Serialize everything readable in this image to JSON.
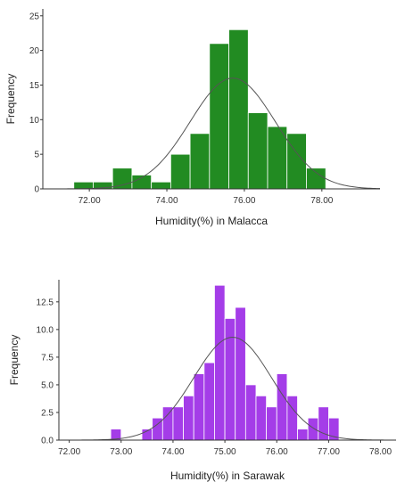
{
  "chart_data": [
    {
      "type": "bar",
      "subtype": "histogram",
      "xlabel": "Humidity(%) in Malacca",
      "ylabel": "Frequency",
      "bar_color": "#228b22",
      "bar_edge_color": "#ffffff",
      "curve_color": "#555555",
      "xlim": [
        70.8,
        79.5
      ],
      "ylim": [
        0,
        26
      ],
      "xticks": [
        72,
        74,
        76,
        78
      ],
      "xtick_labels": [
        "72.00",
        "74.00",
        "76.00",
        "78.00"
      ],
      "yticks": [
        0,
        5,
        10,
        15,
        20,
        25
      ],
      "ytick_labels": [
        "0",
        "5",
        "10",
        "15",
        "20",
        "25"
      ],
      "bins": [
        {
          "from": 71.6,
          "to": 72.1,
          "count": 1
        },
        {
          "from": 72.1,
          "to": 72.6,
          "count": 1
        },
        {
          "from": 72.6,
          "to": 73.1,
          "count": 3
        },
        {
          "from": 73.1,
          "to": 73.6,
          "count": 2
        },
        {
          "from": 73.6,
          "to": 74.1,
          "count": 1
        },
        {
          "from": 74.1,
          "to": 74.6,
          "count": 5
        },
        {
          "from": 74.6,
          "to": 75.1,
          "count": 8
        },
        {
          "from": 75.1,
          "to": 75.6,
          "count": 21
        },
        {
          "from": 75.6,
          "to": 76.1,
          "count": 23
        },
        {
          "from": 76.1,
          "to": 76.6,
          "count": 11
        },
        {
          "from": 76.6,
          "to": 77.1,
          "count": 9
        },
        {
          "from": 77.1,
          "to": 77.6,
          "count": 8
        },
        {
          "from": 77.6,
          "to": 78.1,
          "count": 3
        }
      ],
      "normal_curve": {
        "mean": 75.7,
        "sd": 1.1,
        "peak": 16
      }
    },
    {
      "type": "bar",
      "subtype": "histogram",
      "xlabel": "Humidity(%) in Sarawak",
      "ylabel": "Frequency",
      "bar_color": "#a43de8",
      "bar_edge_color": "#ffffff",
      "curve_color": "#555555",
      "xlim": [
        71.8,
        78.3
      ],
      "ylim": [
        0,
        14.5
      ],
      "xticks": [
        72,
        73,
        74,
        75,
        76,
        77,
        78
      ],
      "xtick_labels": [
        "72.00",
        "73.00",
        "74.00",
        "75.00",
        "76.00",
        "77.00",
        "78.00"
      ],
      "yticks": [
        0,
        2.5,
        5,
        7.5,
        10,
        12.5
      ],
      "ytick_labels": [
        "0.0",
        "2.5",
        "5.0",
        "7.5",
        "10.0",
        "12.5"
      ],
      "bins": [
        {
          "from": 72.8,
          "to": 73.0,
          "count": 1
        },
        {
          "from": 73.0,
          "to": 73.2,
          "count": 0
        },
        {
          "from": 73.2,
          "to": 73.4,
          "count": 0
        },
        {
          "from": 73.4,
          "to": 73.6,
          "count": 1
        },
        {
          "from": 73.6,
          "to": 73.8,
          "count": 2
        },
        {
          "from": 73.8,
          "to": 74.0,
          "count": 3
        },
        {
          "from": 74.0,
          "to": 74.2,
          "count": 3
        },
        {
          "from": 74.2,
          "to": 74.4,
          "count": 4
        },
        {
          "from": 74.4,
          "to": 74.6,
          "count": 6
        },
        {
          "from": 74.6,
          "to": 74.8,
          "count": 7
        },
        {
          "from": 74.8,
          "to": 75.0,
          "count": 14
        },
        {
          "from": 75.0,
          "to": 75.2,
          "count": 11
        },
        {
          "from": 75.2,
          "to": 75.4,
          "count": 12
        },
        {
          "from": 75.4,
          "to": 75.6,
          "count": 5
        },
        {
          "from": 75.6,
          "to": 75.8,
          "count": 4
        },
        {
          "from": 75.8,
          "to": 76.0,
          "count": 3
        },
        {
          "from": 76.0,
          "to": 76.2,
          "count": 6
        },
        {
          "from": 76.2,
          "to": 76.4,
          "count": 4
        },
        {
          "from": 76.4,
          "to": 76.6,
          "count": 1
        },
        {
          "from": 76.6,
          "to": 76.8,
          "count": 2
        },
        {
          "from": 76.8,
          "to": 77.0,
          "count": 3
        },
        {
          "from": 77.0,
          "to": 77.2,
          "count": 2
        }
      ],
      "normal_curve": {
        "mean": 75.15,
        "sd": 0.75,
        "peak": 9.3
      }
    }
  ]
}
